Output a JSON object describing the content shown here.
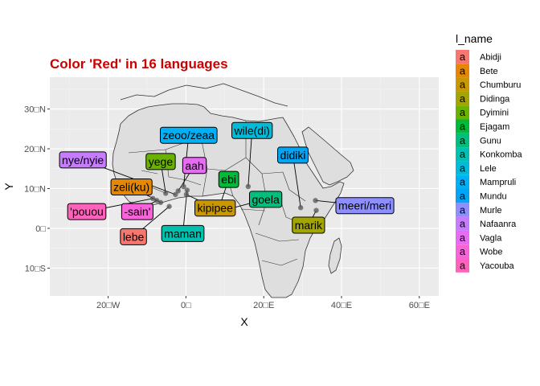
{
  "chart_data": {
    "type": "scatter",
    "title": "Color 'Red' in 16 languages",
    "xlabel": "X",
    "ylabel": "Y",
    "xlim": [
      -35,
      65
    ],
    "ylim": [
      -17,
      38
    ],
    "x_ticks": [
      {
        "value": -20,
        "label": "20□W"
      },
      {
        "value": 0,
        "label": "0□"
      },
      {
        "value": 20,
        "label": "20□E"
      },
      {
        "value": 40,
        "label": "40□E"
      },
      {
        "value": 60,
        "label": "60□E"
      }
    ],
    "y_ticks": [
      {
        "value": -10,
        "label": "10□S"
      },
      {
        "value": 0,
        "label": "0□"
      },
      {
        "value": 10,
        "label": "10□N"
      },
      {
        "value": 20,
        "label": "20□N"
      },
      {
        "value": 30,
        "label": "30□N"
      }
    ],
    "grid": true,
    "legend": {
      "title": "l_name",
      "position": "right",
      "key_glyph": "a",
      "entries": [
        {
          "name": "Abidji",
          "color": "#F8766D"
        },
        {
          "name": "Bete",
          "color": "#E58700"
        },
        {
          "name": "Chumburu",
          "color": "#C99800"
        },
        {
          "name": "Didinga",
          "color": "#A3A500"
        },
        {
          "name": "Dyimini",
          "color": "#6BB100"
        },
        {
          "name": "Ejagam",
          "color": "#00BA38"
        },
        {
          "name": "Gunu",
          "color": "#00BF7D"
        },
        {
          "name": "Konkomba",
          "color": "#00C0AF"
        },
        {
          "name": "Lele",
          "color": "#00BCD8"
        },
        {
          "name": "Mampruli",
          "color": "#00B0F6"
        },
        {
          "name": "Mundu",
          "color": "#00A5F5"
        },
        {
          "name": "Murle",
          "color": "#8D8FFF"
        },
        {
          "name": "Nafaanra",
          "color": "#C77CFF"
        },
        {
          "name": "Vagla",
          "color": "#E76BF3"
        },
        {
          "name": "Wobe",
          "color": "#FA62DB"
        },
        {
          "name": "Yacouba",
          "color": "#FF62BC"
        }
      ]
    },
    "points": [
      {
        "language": "Abidji",
        "word": "lebe",
        "x": -4.3,
        "y": 5.5,
        "label_x": -13.5,
        "label_y": -2.1
      },
      {
        "language": "Bete",
        "word": "zeli(ku)",
        "x": -6.5,
        "y": 6.5,
        "label_x": -14,
        "label_y": 10.4
      },
      {
        "language": "Chumburu",
        "word": "kipipee",
        "x": 0.1,
        "y": 8.5,
        "label_x": 7.5,
        "label_y": 5.1
      },
      {
        "language": "Didinga",
        "word": "marik",
        "x": 33.5,
        "y": 4.5,
        "label_x": 31.5,
        "label_y": 0.8
      },
      {
        "language": "Dyimini",
        "word": "yege",
        "x": -5.2,
        "y": 8.8,
        "label_x": -6.5,
        "label_y": 16.8
      },
      {
        "language": "Ejagam",
        "word": "ebi",
        "x": 8.8,
        "y": 6,
        "label_x": 11,
        "label_y": 12.3
      },
      {
        "language": "Gunu",
        "word": "goela",
        "x": 11.5,
        "y": 5,
        "label_x": 20.5,
        "label_y": 7.3
      },
      {
        "language": "Konkomba",
        "word": "maman",
        "x": 0.3,
        "y": 9.6,
        "label_x": -0.8,
        "label_y": -1.3
      },
      {
        "language": "Lele",
        "word": "wile(di)",
        "x": 16,
        "y": 10.5,
        "label_x": 17,
        "label_y": 24.6
      },
      {
        "language": "Mampruli",
        "word": "zeoo/zeaa",
        "x": -0.6,
        "y": 10.5,
        "label_x": 0.7,
        "label_y": 23.4
      },
      {
        "language": "Mundu",
        "word": "didiki",
        "x": 29.5,
        "y": 5.2,
        "label_x": 27.5,
        "label_y": 18.4
      },
      {
        "language": "Murle",
        "word": "meeri/meri",
        "x": 33.3,
        "y": 7,
        "label_x": 46,
        "label_y": 5.7
      },
      {
        "language": "Nafaanra",
        "word": "nye/nyie",
        "x": -2.7,
        "y": 8.5,
        "label_x": -26.5,
        "label_y": 17.2
      },
      {
        "language": "Vagla",
        "word": "aah",
        "x": -2,
        "y": 9.4,
        "label_x": 2.2,
        "label_y": 15.8
      },
      {
        "language": "Wobe",
        "word": "-sain'",
        "x": -7.5,
        "y": 7,
        "label_x": -12.5,
        "label_y": 4.2
      },
      {
        "language": "Yacouba",
        "word": "'pouou",
        "x": -8.5,
        "y": 7.5,
        "label_x": -25.5,
        "label_y": 4.2
      }
    ]
  }
}
